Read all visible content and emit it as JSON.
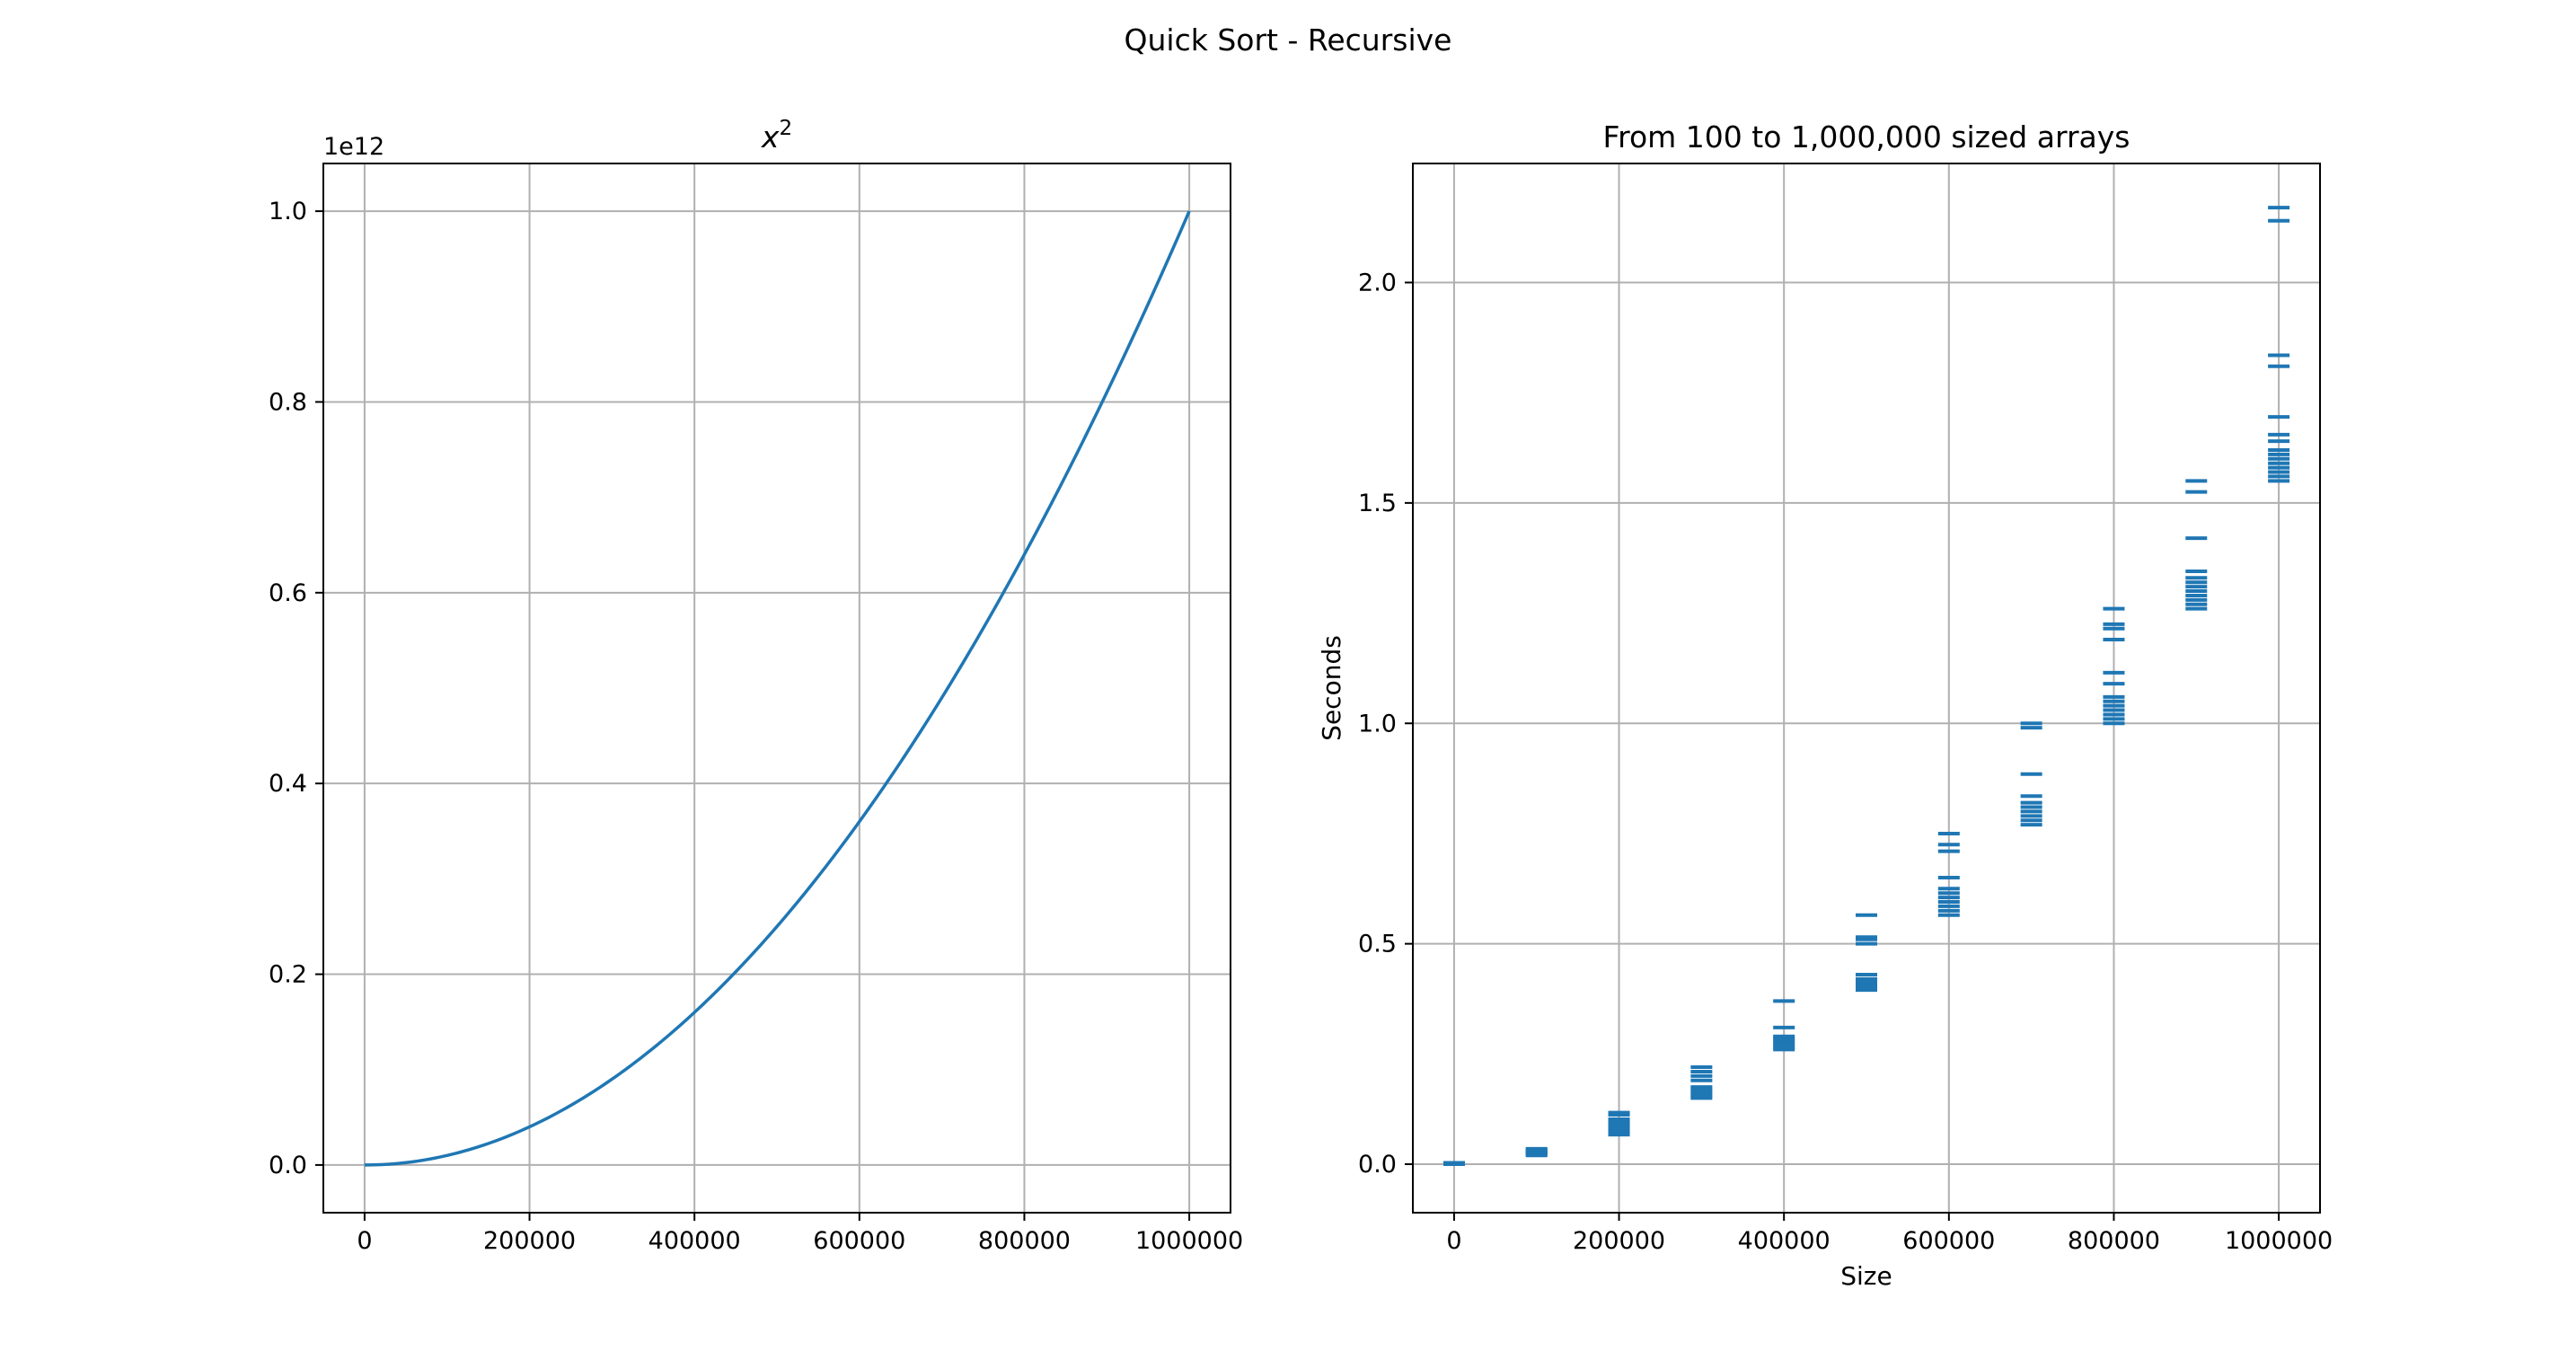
{
  "suptitle": "Quick Sort - Recursive",
  "colors": {
    "series": "#1f77b4",
    "grid": "#b0b0b0",
    "axes": "#000000"
  },
  "chart_data": [
    {
      "type": "line",
      "title": "x²",
      "title_base": "x",
      "title_sup": "2",
      "xlabel": "",
      "ylabel": "",
      "offset_text": "1e12",
      "function": "x^2",
      "x_domain": [
        0,
        1000000
      ],
      "xlim": [
        -50000,
        1050000
      ],
      "ylim": [
        -0.05,
        1.05
      ],
      "y_scale": 1000000000000,
      "xticks": [
        0,
        200000,
        400000,
        600000,
        800000,
        1000000
      ],
      "xtick_labels": [
        "0",
        "200000",
        "400000",
        "600000",
        "800000",
        "1000000"
      ],
      "yticks": [
        0.0,
        0.2,
        0.4,
        0.6,
        0.8,
        1.0
      ],
      "ytick_labels": [
        "0.0",
        "0.2",
        "0.4",
        "0.6",
        "0.8",
        "1.0"
      ],
      "grid": true
    },
    {
      "type": "scatter",
      "marker": "_",
      "title": "From 100 to 1,000,000 sized arrays",
      "xlabel": "Size",
      "ylabel": "Seconds",
      "xlim": [
        -50000,
        1050000
      ],
      "ylim": [
        -0.11,
        2.27
      ],
      "xticks": [
        0,
        200000,
        400000,
        600000,
        800000,
        1000000
      ],
      "xtick_labels": [
        "0",
        "200000",
        "400000",
        "600000",
        "800000",
        "1000000"
      ],
      "yticks": [
        0.0,
        0.5,
        1.0,
        1.5,
        2.0
      ],
      "ytick_labels": [
        "0.0",
        "0.5",
        "1.0",
        "1.5",
        "2.0"
      ],
      "grid": true,
      "series": [
        {
          "x": 100,
          "values": [
            0.0,
            0.0,
            0.0,
            0.0,
            0.001,
            0.001,
            0.001,
            0.002,
            0.002,
            0.003
          ]
        },
        {
          "x": 100000,
          "values": [
            0.02,
            0.022,
            0.024,
            0.025,
            0.027,
            0.028,
            0.03,
            0.031,
            0.033,
            0.035
          ]
        },
        {
          "x": 200000,
          "values": [
            0.067,
            0.072,
            0.077,
            0.082,
            0.087,
            0.092,
            0.097,
            0.102,
            0.112,
            0.117
          ]
        },
        {
          "x": 300000,
          "values": [
            0.15,
            0.155,
            0.16,
            0.165,
            0.17,
            0.175,
            0.19,
            0.2,
            0.21,
            0.22
          ]
        },
        {
          "x": 400000,
          "values": [
            0.26,
            0.265,
            0.27,
            0.275,
            0.28,
            0.285,
            0.29,
            0.31,
            0.37
          ]
        },
        {
          "x": 500000,
          "values": [
            0.395,
            0.4,
            0.405,
            0.41,
            0.415,
            0.42,
            0.43,
            0.5,
            0.51,
            0.515,
            0.565
          ]
        },
        {
          "x": 600000,
          "values": [
            0.565,
            0.575,
            0.585,
            0.595,
            0.605,
            0.615,
            0.625,
            0.65,
            0.71,
            0.725,
            0.75
          ]
        },
        {
          "x": 700000,
          "values": [
            0.77,
            0.78,
            0.79,
            0.8,
            0.81,
            0.82,
            0.835,
            0.885,
            0.99,
            1.0
          ]
        },
        {
          "x": 800000,
          "values": [
            1.0,
            1.01,
            1.02,
            1.03,
            1.04,
            1.05,
            1.06,
            1.09,
            1.115,
            1.19,
            1.215,
            1.225,
            1.26
          ]
        },
        {
          "x": 900000,
          "values": [
            1.26,
            1.27,
            1.28,
            1.29,
            1.3,
            1.31,
            1.32,
            1.33,
            1.345,
            1.42,
            1.525,
            1.55
          ]
        },
        {
          "x": 1000000,
          "values": [
            1.55,
            1.56,
            1.57,
            1.58,
            1.59,
            1.6,
            1.61,
            1.62,
            1.64,
            1.655,
            1.695,
            1.81,
            1.835,
            2.14,
            2.17
          ]
        }
      ]
    }
  ]
}
